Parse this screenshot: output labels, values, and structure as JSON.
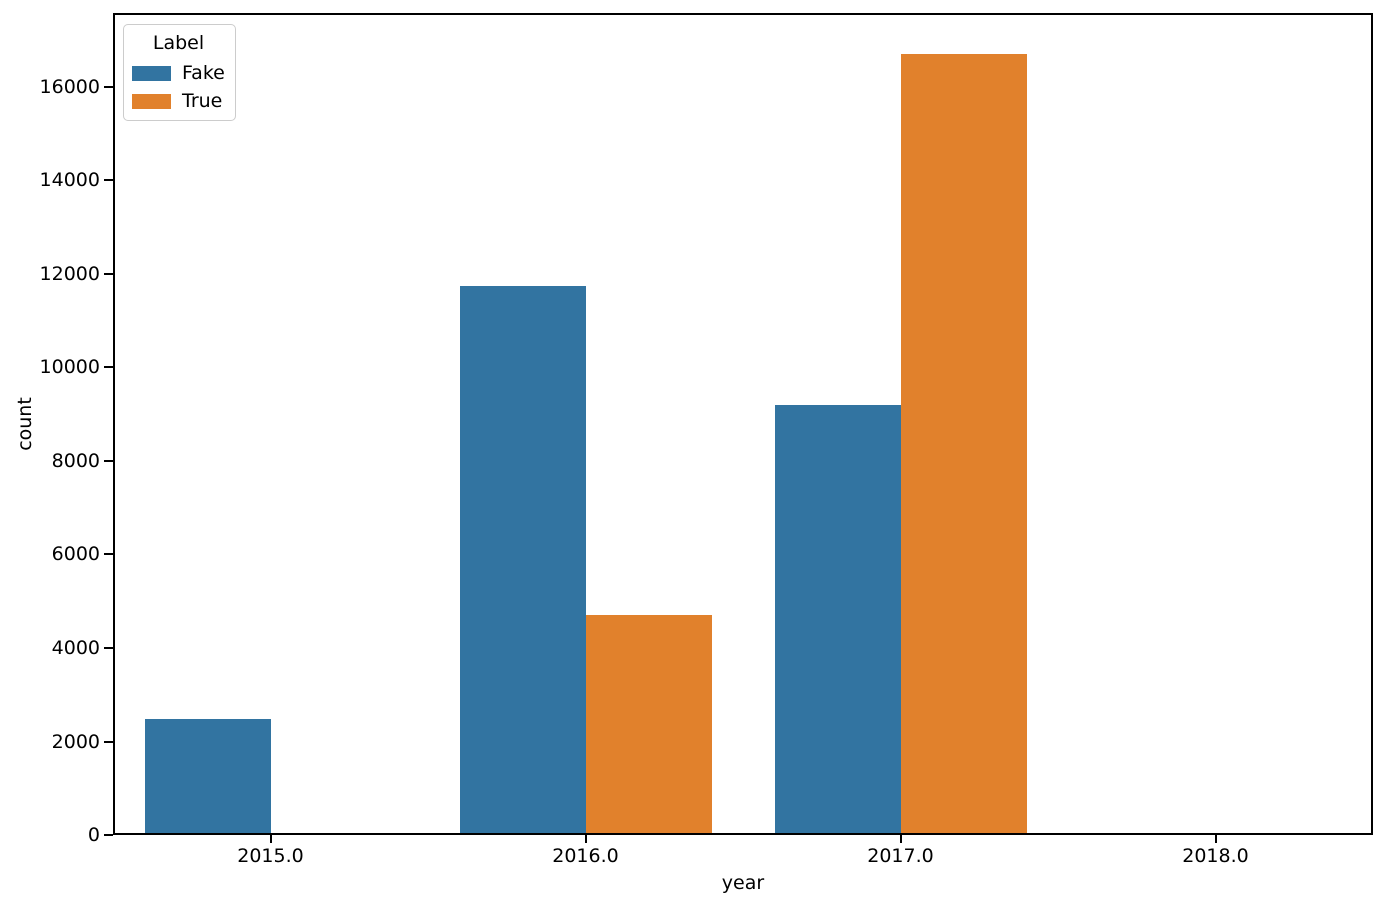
{
  "chart_data": {
    "type": "bar",
    "title": "",
    "xlabel": "year",
    "ylabel": "count",
    "categories": [
      "2015.0",
      "2016.0",
      "2017.0",
      "2018.0"
    ],
    "series": [
      {
        "name": "Fake",
        "color": "#3274a1",
        "values": [
          2477,
          11750,
          9196,
          35
        ]
      },
      {
        "name": "True",
        "color": "#e1812c",
        "values": [
          0,
          4709,
          16708,
          0
        ]
      }
    ],
    "yticks": [
      0,
      2000,
      4000,
      6000,
      8000,
      10000,
      12000,
      14000,
      16000
    ],
    "ylim": [
      0,
      17580
    ],
    "grid": false,
    "legend": {
      "title": "Label",
      "position": "upper left",
      "entries": [
        "Fake",
        "True"
      ]
    }
  }
}
